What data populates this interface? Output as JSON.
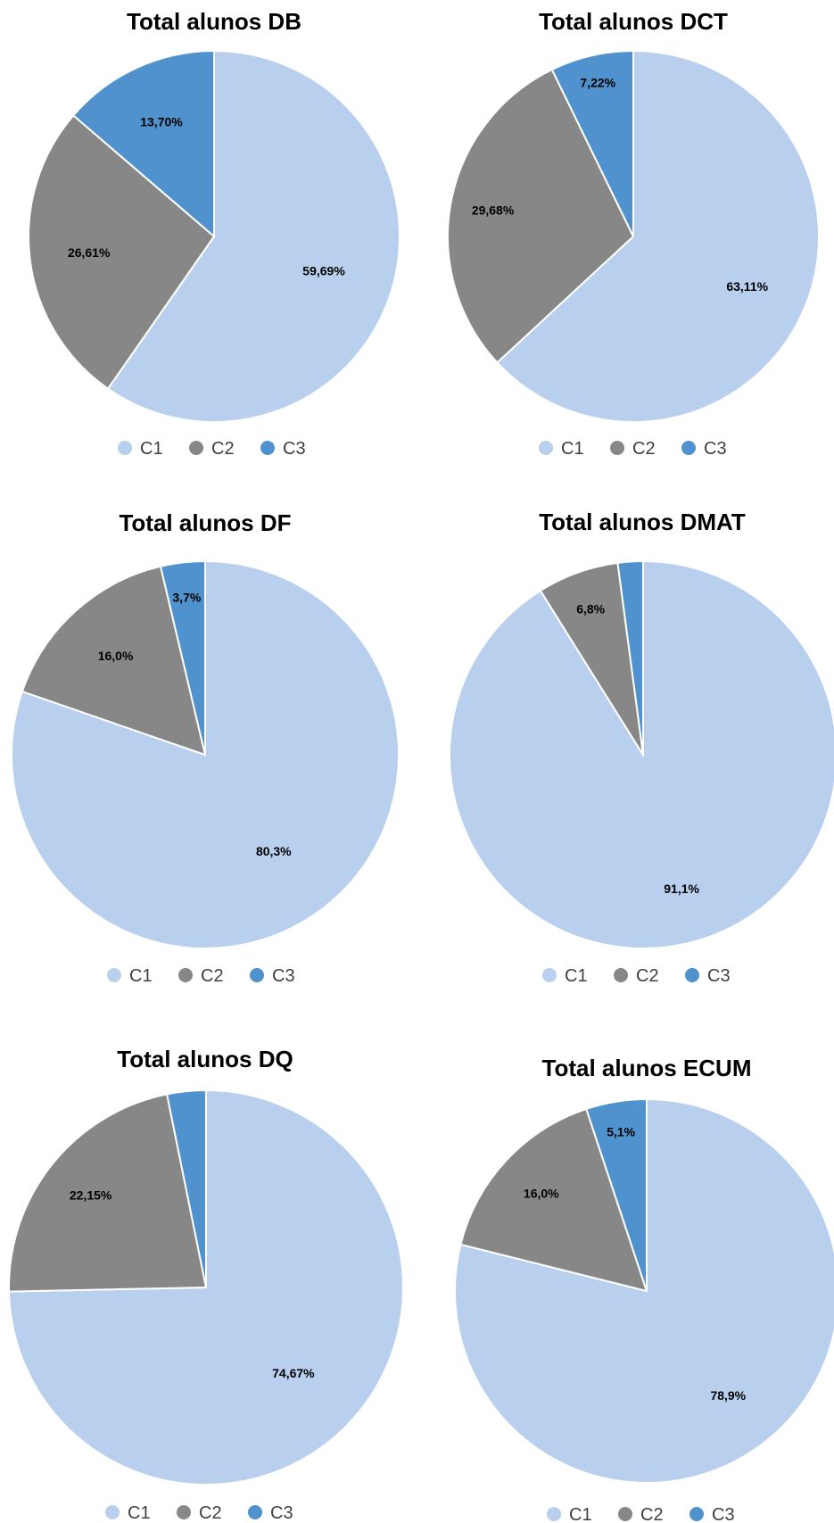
{
  "colors": {
    "C1": "#B8CFEE",
    "C2": "#878787",
    "C3": "#4F92CE"
  },
  "chart_data": [
    {
      "type": "pie",
      "title": "Total alunos DB",
      "categories": [
        "C1",
        "C2",
        "C3"
      ],
      "values": [
        59.69,
        26.61,
        13.7
      ],
      "labels": [
        "59,69%",
        "26,61%",
        "13,70%"
      ],
      "legend": [
        "C1",
        "C2",
        "C3"
      ],
      "legend_position": "bottom"
    },
    {
      "type": "pie",
      "title": "Total alunos DCT",
      "categories": [
        "C1",
        "C2",
        "C3"
      ],
      "values": [
        63.11,
        29.68,
        7.22
      ],
      "labels": [
        "63,11%",
        "29,68%",
        "7,22%"
      ],
      "legend": [
        "C1",
        "C2",
        "C3"
      ],
      "legend_position": "bottom"
    },
    {
      "type": "pie",
      "title": "Total alunos DF",
      "categories": [
        "C1",
        "C2",
        "C3"
      ],
      "values": [
        80.3,
        16.0,
        3.7
      ],
      "labels": [
        "80,3%",
        "16,0%",
        "3,7%"
      ],
      "legend": [
        "C1",
        "C2",
        "C3"
      ],
      "legend_position": "bottom"
    },
    {
      "type": "pie",
      "title": "Total alunos DMAT",
      "categories": [
        "C1",
        "C2",
        "C3"
      ],
      "values": [
        91.1,
        6.8,
        2.1
      ],
      "labels": [
        "91,1%",
        "6,8%",
        ""
      ],
      "legend": [
        "C1",
        "C2",
        "C3"
      ],
      "legend_position": "bottom"
    },
    {
      "type": "pie",
      "title": "Total alunos DQ",
      "categories": [
        "C1",
        "C2",
        "C3"
      ],
      "values": [
        74.67,
        22.15,
        3.18
      ],
      "labels": [
        "74,67%",
        "22,15%",
        ""
      ],
      "legend": [
        "C1",
        "C2",
        "C3"
      ],
      "legend_position": "bottom"
    },
    {
      "type": "pie",
      "title": "Total alunos ECUM",
      "categories": [
        "C1",
        "C2",
        "C3"
      ],
      "values": [
        78.9,
        16.0,
        5.1
      ],
      "labels": [
        "78,9%",
        "16,0%",
        "5,1%"
      ],
      "legend": [
        "C1",
        "C2",
        "C3"
      ],
      "legend_position": "bottom"
    }
  ]
}
